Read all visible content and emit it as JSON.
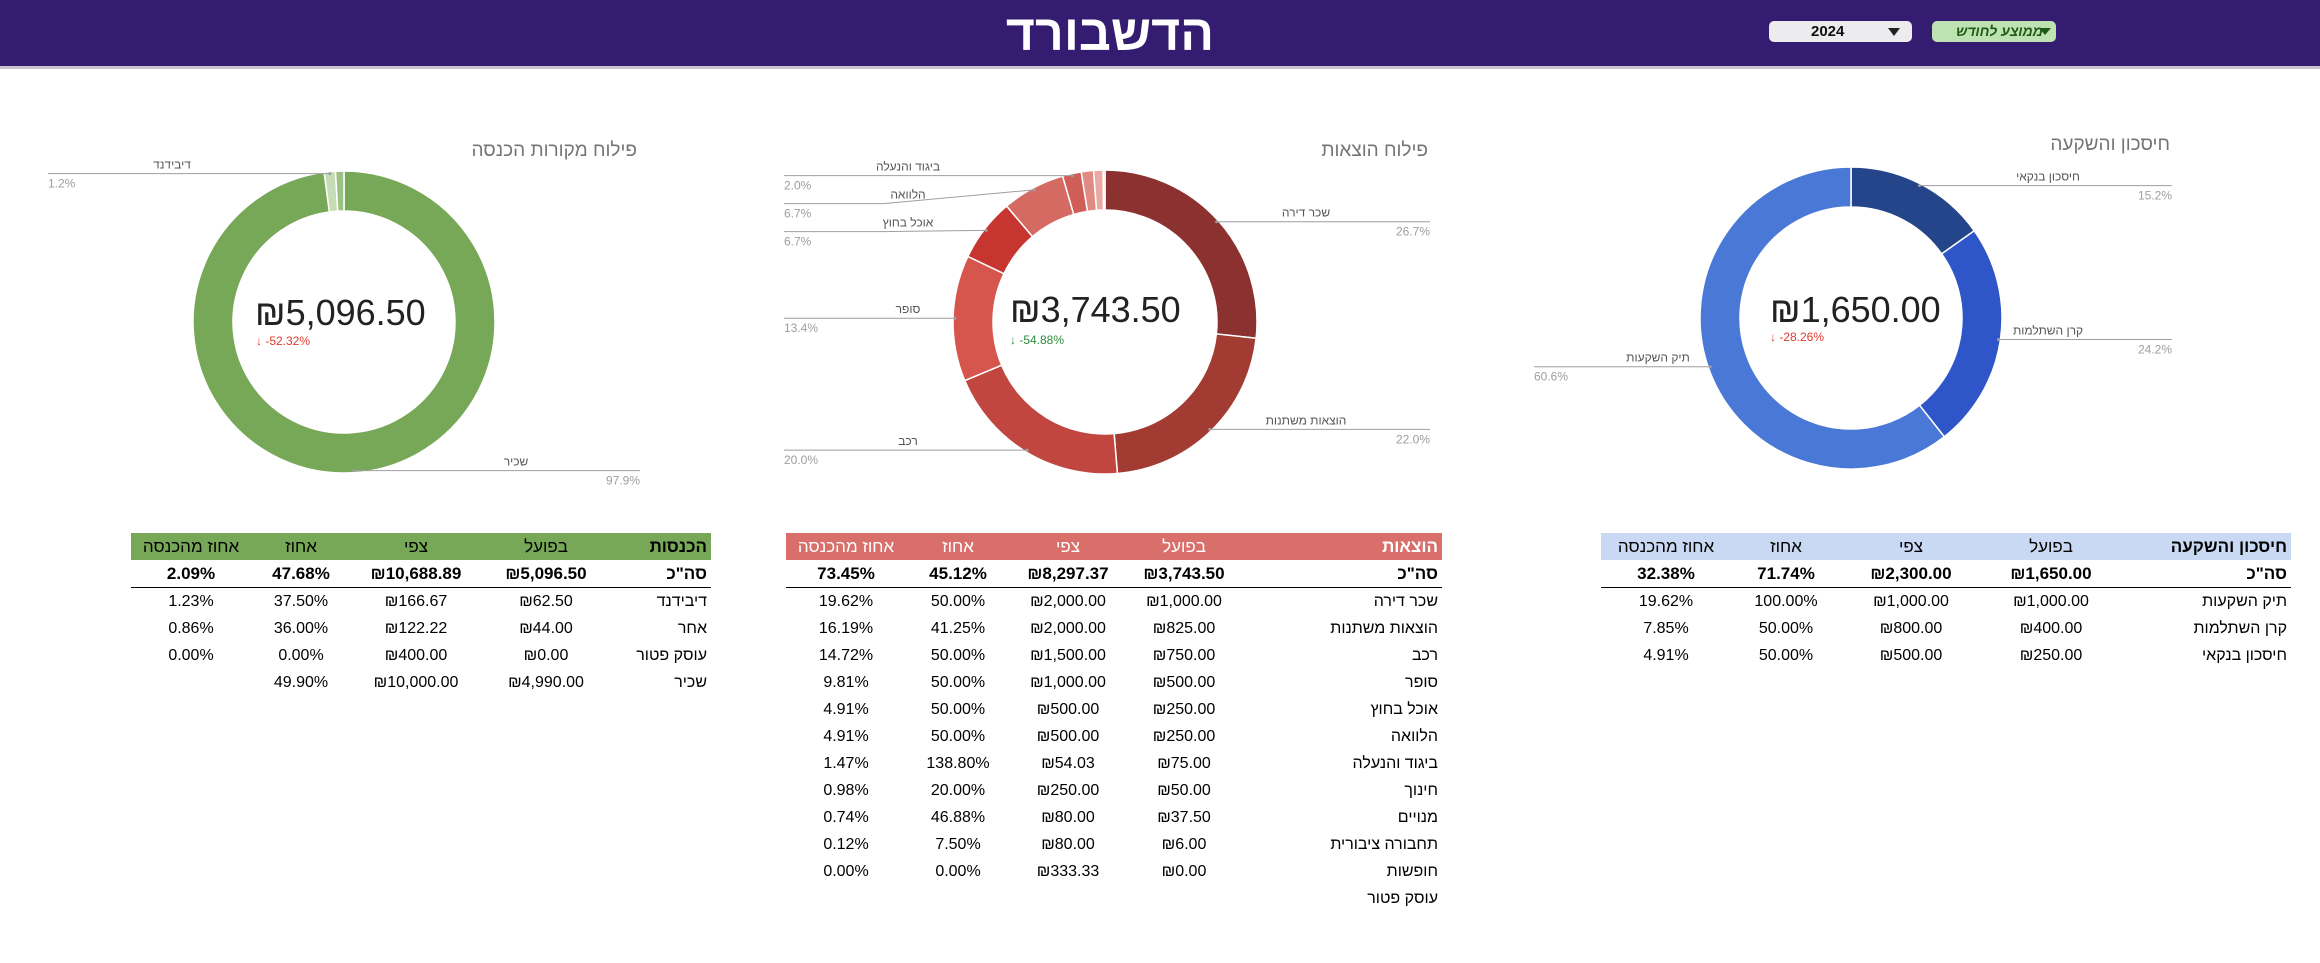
{
  "header": {
    "title": "הדשבורד",
    "year": "2024",
    "mode": "ממוצע לחודש"
  },
  "colors": {
    "header_bg": "#341c70",
    "income": "#77a858",
    "income_header": "#77a858",
    "expenses": "#c0433d",
    "expenses_header": "#d86f6b",
    "savings": "#4a78d6",
    "savings_header": "#c9d8f3"
  },
  "charts": {
    "income": {
      "title": "פילוח מקורות הכנסה",
      "center_value": "₪5,096.50",
      "change": "-52.32%",
      "change_dir": "down"
    },
    "expenses": {
      "title": "פילוח הוצאות",
      "center_value": "₪3,743.50",
      "change": "-54.88%",
      "change_dir": "down"
    },
    "savings": {
      "title": "חיסכון והשקעה",
      "center_value": "₪1,650.00",
      "change": "-28.26%",
      "change_dir": "down"
    }
  },
  "chart_data": [
    {
      "type": "pie",
      "title": "פילוח מקורות הכנסה",
      "slices": [
        {
          "label": "שכיר",
          "value": 97.9,
          "pct_label": "97.9%",
          "color": "#77a858"
        },
        {
          "label": "דיבידנד",
          "value": 1.2,
          "pct_label": "1.2%",
          "color": "#c5dcb5"
        },
        {
          "label": "אחר",
          "value": 0.9,
          "pct_label": "",
          "color": "#9cc184"
        }
      ]
    },
    {
      "type": "pie",
      "title": "פילוח הוצאות",
      "slices": [
        {
          "label": "שכר דירה",
          "value": 26.7,
          "pct_label": "26.7%",
          "color": "#8b3230"
        },
        {
          "label": "הוצאות משתנות",
          "value": 22.0,
          "pct_label": "22.0%",
          "color": "#a23c33"
        },
        {
          "label": "רכב",
          "value": 20.0,
          "pct_label": "20.0%",
          "color": "#c0463f"
        },
        {
          "label": "סופר",
          "value": 13.4,
          "pct_label": "13.4%",
          "color": "#d6554c"
        },
        {
          "label": "אוכל בחוץ",
          "value": 6.7,
          "pct_label": "6.7%",
          "color": "#c73530"
        },
        {
          "label": "הלוואה",
          "value": 6.7,
          "pct_label": "6.7%",
          "color": "#d56a62"
        },
        {
          "label": "ביגוד והנעלה",
          "value": 2.0,
          "pct_label": "2.0%",
          "color": "#cf5e58"
        },
        {
          "label": "חינוך",
          "value": 1.3,
          "pct_label": "",
          "color": "#e08a84"
        },
        {
          "label": "מנויים",
          "value": 1.0,
          "pct_label": "",
          "color": "#eba9a4"
        },
        {
          "label": "תחבורה ציבורית",
          "value": 0.2,
          "pct_label": "",
          "color": "#f4cfcc"
        }
      ]
    },
    {
      "type": "pie",
      "title": "חיסכון והשקעה",
      "slices": [
        {
          "label": "חיסכון בנקאי",
          "value": 15.2,
          "pct_label": "15.2%",
          "color": "#24458a"
        },
        {
          "label": "קרן השתלמות",
          "value": 24.2,
          "pct_label": "24.2%",
          "color": "#2f56c8"
        },
        {
          "label": "תיק השקעות",
          "value": 60.6,
          "pct_label": "60.6%",
          "color": "#4a78d6"
        }
      ]
    }
  ],
  "tables": {
    "income": {
      "headers": [
        "הכנסות",
        "בפועל",
        "צפי",
        "אחוז",
        "אחוז מהכנסה"
      ],
      "total": [
        "סה\"כ",
        "₪5,096.50",
        "₪10,688.89",
        "47.68%",
        "2.09%"
      ],
      "rows": [
        [
          "דיבידנד",
          "₪62.50",
          "₪166.67",
          "37.50%",
          "1.23%"
        ],
        [
          "אחר",
          "₪44.00",
          "₪122.22",
          "36.00%",
          "0.86%"
        ],
        [
          "עוסק פטור",
          "₪0.00",
          "₪400.00",
          "0.00%",
          "0.00%"
        ],
        [
          "שכיר",
          "₪4,990.00",
          "₪10,000.00",
          "49.90%",
          ""
        ]
      ]
    },
    "expenses": {
      "headers": [
        "הוצאות",
        "בפועל",
        "צפי",
        "אחוז",
        "אחוז מהכנסה"
      ],
      "total": [
        "סה\"כ",
        "₪3,743.50",
        "₪8,297.37",
        "45.12%",
        "73.45%"
      ],
      "rows": [
        [
          "שכר דירה",
          "₪1,000.00",
          "₪2,000.00",
          "50.00%",
          "19.62%"
        ],
        [
          "הוצאות משתנות",
          "₪825.00",
          "₪2,000.00",
          "41.25%",
          "16.19%"
        ],
        [
          "רכב",
          "₪750.00",
          "₪1,500.00",
          "50.00%",
          "14.72%"
        ],
        [
          "סופר",
          "₪500.00",
          "₪1,000.00",
          "50.00%",
          "9.81%"
        ],
        [
          "אוכל בחוץ",
          "₪250.00",
          "₪500.00",
          "50.00%",
          "4.91%"
        ],
        [
          "הלוואה",
          "₪250.00",
          "₪500.00",
          "50.00%",
          "4.91%"
        ],
        [
          "ביגוד והנעלה",
          "₪75.00",
          "₪54.03",
          "138.80%",
          "1.47%"
        ],
        [
          "חינוך",
          "₪50.00",
          "₪250.00",
          "20.00%",
          "0.98%"
        ],
        [
          "מנויים",
          "₪37.50",
          "₪80.00",
          "46.88%",
          "0.74%"
        ],
        [
          "תחבורה ציבורית",
          "₪6.00",
          "₪80.00",
          "7.50%",
          "0.12%"
        ],
        [
          "חופשות",
          "₪0.00",
          "₪333.33",
          "0.00%",
          "0.00%"
        ],
        [
          "עוסק פטור",
          "",
          "",
          "",
          ""
        ]
      ]
    },
    "savings": {
      "headers": [
        "חיסכון והשקעה",
        "בפועל",
        "צפי",
        "אחוז",
        "אחוז מהכנסה"
      ],
      "total": [
        "סה\"כ",
        "₪1,650.00",
        "₪2,300.00",
        "71.74%",
        "32.38%"
      ],
      "rows": [
        [
          "תיק השקעות",
          "₪1,000.00",
          "₪1,000.00",
          "100.00%",
          "19.62%"
        ],
        [
          "קרן השתלמות",
          "₪400.00",
          "₪800.00",
          "50.00%",
          "7.85%"
        ],
        [
          "חיסכון בנקאי",
          "₪250.00",
          "₪500.00",
          "50.00%",
          "4.91%"
        ]
      ]
    }
  }
}
